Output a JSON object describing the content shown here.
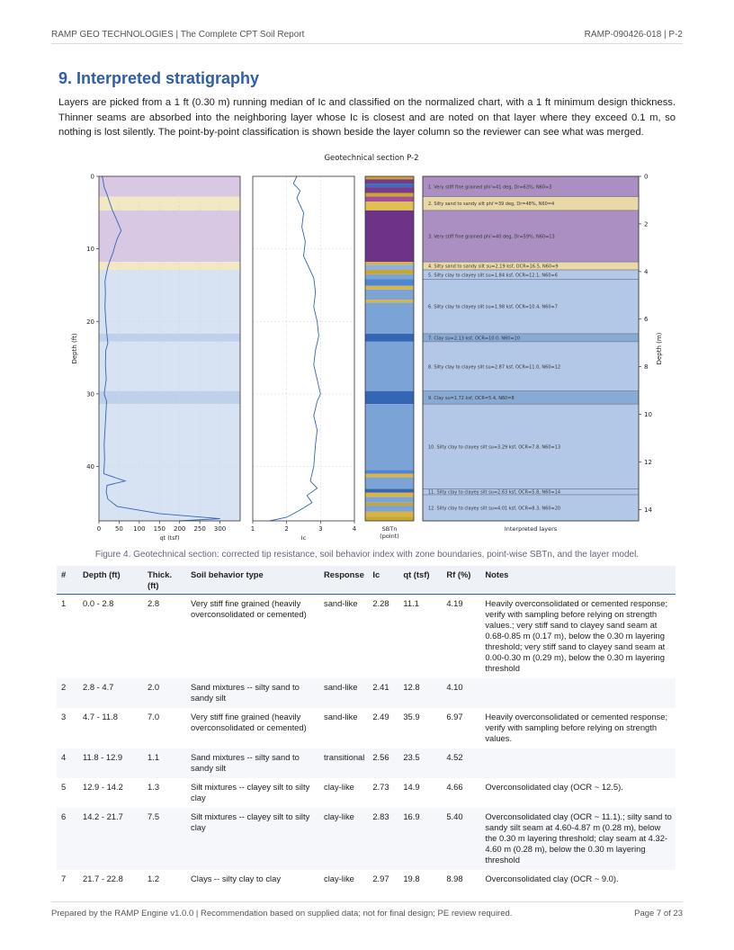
{
  "header": {
    "left": "RAMP GEO TECHNOLOGIES  |  The Complete CPT Soil Report",
    "right": "RAMP-090426-018  |  P-2"
  },
  "section": {
    "title": "9. Interpreted stratigraphy",
    "intro": "Layers are picked from a 1 ft (0.30 m) running median of Ic and classified on the normalized chart, with a 1 ft minimum design thickness. Thinner seams are absorbed into the neighboring layer whose Ic is closest and are noted on that layer where they exceed 0.1 m, so nothing is lost silently. The point-by-point classification is shown beside the layer column so the reviewer can see what was merged."
  },
  "figure": {
    "caption": "Figure 4. Geotechnical section: corrected tip resistance, soil behavior index with zone boundaries, point-wise SBTn, and the layer model."
  },
  "chart_data": {
    "type": "line",
    "title": "Geotechnical section P-2",
    "ylabel": "Depth (ft)",
    "ylim": [
      0,
      47.5
    ],
    "yticks": [
      "0",
      "10",
      "20",
      "30",
      "40"
    ],
    "right_axis": {
      "label": "Depth (m)",
      "ticks": [
        "0",
        "2",
        "4",
        "6",
        "8",
        "10",
        "12",
        "14"
      ]
    },
    "panels": {
      "qt": {
        "xlabel": "qt (tsf)",
        "xlim": [
          0,
          350
        ],
        "xticks": [
          "0",
          "50",
          "100",
          "150",
          "200",
          "250",
          "300"
        ]
      },
      "ic": {
        "xlabel": "Ic",
        "xlim": [
          1,
          4
        ],
        "xticks": [
          "1",
          "2",
          "3",
          "4"
        ]
      },
      "sbtn": {
        "xlabel1": "SBTn",
        "xlabel2": "(point)"
      },
      "layers": {
        "xlabel": "Interpreted layers"
      }
    },
    "qt_profile": [
      [
        0.0,
        8
      ],
      [
        0.5,
        10
      ],
      [
        1.5,
        13
      ],
      [
        2.5,
        20
      ],
      [
        3.5,
        26
      ],
      [
        4.5,
        32
      ],
      [
        5.5,
        40
      ],
      [
        6.5,
        48
      ],
      [
        7.5,
        55
      ],
      [
        8.5,
        46
      ],
      [
        9.5,
        40
      ],
      [
        10.5,
        35
      ],
      [
        11.5,
        28
      ],
      [
        12.5,
        22
      ],
      [
        13.5,
        18
      ],
      [
        14.5,
        15
      ],
      [
        16,
        16
      ],
      [
        18,
        15
      ],
      [
        20,
        17
      ],
      [
        22,
        20
      ],
      [
        23,
        22
      ],
      [
        24,
        17
      ],
      [
        26,
        16
      ],
      [
        28,
        18
      ],
      [
        30,
        13
      ],
      [
        31,
        19
      ],
      [
        33,
        17
      ],
      [
        35,
        15
      ],
      [
        37,
        13
      ],
      [
        39,
        14
      ],
      [
        41,
        12
      ],
      [
        42,
        65
      ],
      [
        42.6,
        20
      ],
      [
        43.5,
        18
      ],
      [
        44.5,
        22
      ],
      [
        45.5,
        45
      ],
      [
        46.5,
        150
      ],
      [
        47.2,
        300
      ],
      [
        47.5,
        200
      ]
    ],
    "ic_profile": [
      [
        0.0,
        2.3
      ],
      [
        1,
        2.2
      ],
      [
        2,
        2.4
      ],
      [
        3,
        2.3
      ],
      [
        4,
        2.4
      ],
      [
        5,
        2.5
      ],
      [
        7,
        2.45
      ],
      [
        9,
        2.55
      ],
      [
        11,
        2.5
      ],
      [
        12,
        2.6
      ],
      [
        13,
        2.7
      ],
      [
        14,
        2.8
      ],
      [
        16,
        2.85
      ],
      [
        18,
        2.8
      ],
      [
        20,
        2.9
      ],
      [
        22,
        2.95
      ],
      [
        24,
        2.85
      ],
      [
        26,
        2.8
      ],
      [
        28,
        2.9
      ],
      [
        30,
        3.0
      ],
      [
        31,
        2.9
      ],
      [
        33,
        2.8
      ],
      [
        35,
        2.9
      ],
      [
        37,
        2.85
      ],
      [
        40,
        2.8
      ],
      [
        42,
        2.7
      ],
      [
        43,
        2.9
      ],
      [
        44,
        2.6
      ],
      [
        45,
        2.75
      ],
      [
        46,
        2.4
      ],
      [
        47,
        2.0
      ],
      [
        47.5,
        1.5
      ]
    ],
    "shading_layers": [
      {
        "top": 0,
        "bottom": 2.8,
        "color": "#d9c8e3"
      },
      {
        "top": 2.8,
        "bottom": 4.7,
        "color": "#f3e8c4"
      },
      {
        "top": 4.7,
        "bottom": 11.8,
        "color": "#d9c8e3"
      },
      {
        "top": 11.8,
        "bottom": 12.9,
        "color": "#f3e8c4"
      },
      {
        "top": 12.9,
        "bottom": 21.7,
        "color": "#d7e3f2"
      },
      {
        "top": 21.7,
        "bottom": 22.8,
        "color": "#bfd1ea"
      },
      {
        "top": 22.8,
        "bottom": 29.6,
        "color": "#d7e3f2"
      },
      {
        "top": 29.6,
        "bottom": 31.4,
        "color": "#bfd1ea"
      },
      {
        "top": 31.4,
        "bottom": 47.5,
        "color": "#d7e3f2"
      }
    ],
    "model_layers": [
      {
        "top": 0,
        "bottom": 2.8,
        "color": "#ab8fc2",
        "label": "1. Very stiff fine grained  phi'=41 deg, Dr=63%, N60=3"
      },
      {
        "top": 2.8,
        "bottom": 4.7,
        "color": "#ead9a6",
        "label": "2. Silty sand to sandy silt  phi'=39 deg, Dr=48%, N60=4"
      },
      {
        "top": 4.7,
        "bottom": 11.8,
        "color": "#ab8fc2",
        "label": "3. Very stiff fine grained  phi'=40 deg, Dr=59%, N60=13"
      },
      {
        "top": 11.8,
        "bottom": 12.9,
        "color": "#ead9a6",
        "label": "4. Silty sand to sandy silt  su=2.19 ksf, OCR=16.5, N60=9"
      },
      {
        "top": 12.9,
        "bottom": 14.2,
        "color": "#b3c8e6",
        "label": "5. Silty clay to clayey silt  su=1.84 ksf, OCR=12.1, N60=6"
      },
      {
        "top": 14.2,
        "bottom": 21.7,
        "color": "#b3c8e6",
        "label": "6. Silty clay to clayey silt  su=1.98 ksf, OCR=10.4, N60=7"
      },
      {
        "top": 21.7,
        "bottom": 22.8,
        "color": "#8aaad6",
        "label": "7. Clay  su=2.13 ksf, OCR=10.0, N60=10"
      },
      {
        "top": 22.8,
        "bottom": 29.6,
        "color": "#b3c8e6",
        "label": "8. Silty clay to clayey silt  su=2.87 ksf, OCR=11.0, N60=12"
      },
      {
        "top": 29.6,
        "bottom": 31.4,
        "color": "#8aaad6",
        "label": "9. Clay  su=1.72 ksf, OCR=5.4, N60=8"
      },
      {
        "top": 31.4,
        "bottom": 43.1,
        "color": "#b3c8e6",
        "label": "10. Silty clay to clayey silt  su=3.29 ksf, OCR=7.8, N60=13"
      },
      {
        "top": 43.1,
        "bottom": 43.9,
        "color": "#b3c8e6",
        "label": "11. Silty clay to clayey silt  su=2.63 ksf, OCR=5.8, N60=14"
      },
      {
        "top": 43.9,
        "bottom": 47.5,
        "color": "#b3c8e6",
        "label": "12. Silty clay to clayey silt  su=4.01 ksf, OCR=8.3, N60=20"
      }
    ],
    "sbtn_bands": [
      {
        "top": 0,
        "bottom": 0.4,
        "color": "#c8a630"
      },
      {
        "top": 0.4,
        "bottom": 1.0,
        "color": "#7a3a8c"
      },
      {
        "top": 1.0,
        "bottom": 1.5,
        "color": "#3d6fbf"
      },
      {
        "top": 1.5,
        "bottom": 2.3,
        "color": "#7a3a8c"
      },
      {
        "top": 2.3,
        "bottom": 2.8,
        "color": "#c8a630"
      },
      {
        "top": 2.8,
        "bottom": 3.5,
        "color": "#a64d99"
      },
      {
        "top": 3.5,
        "bottom": 4.7,
        "color": "#e0c050"
      },
      {
        "top": 4.7,
        "bottom": 11.8,
        "color": "#6c3388"
      },
      {
        "top": 11.8,
        "bottom": 12.2,
        "color": "#d8b348"
      },
      {
        "top": 12.2,
        "bottom": 12.9,
        "color": "#8fb0d8"
      },
      {
        "top": 12.9,
        "bottom": 13.5,
        "color": "#c8a630"
      },
      {
        "top": 13.5,
        "bottom": 14.2,
        "color": "#7ba3d6"
      },
      {
        "top": 14.2,
        "bottom": 15.1,
        "color": "#4f86cf"
      },
      {
        "top": 15.1,
        "bottom": 15.6,
        "color": "#d8b348"
      },
      {
        "top": 15.6,
        "bottom": 17.0,
        "color": "#7ba3d6"
      },
      {
        "top": 17.0,
        "bottom": 17.4,
        "color": "#d8b348"
      },
      {
        "top": 17.4,
        "bottom": 21.7,
        "color": "#7ba3d6"
      },
      {
        "top": 21.7,
        "bottom": 22.8,
        "color": "#3565b5"
      },
      {
        "top": 22.8,
        "bottom": 29.6,
        "color": "#7ba3d6"
      },
      {
        "top": 29.6,
        "bottom": 31.4,
        "color": "#3565b5"
      },
      {
        "top": 31.4,
        "bottom": 40.5,
        "color": "#7ba3d6"
      },
      {
        "top": 40.5,
        "bottom": 41.0,
        "color": "#4f86cf"
      },
      {
        "top": 41.0,
        "bottom": 41.5,
        "color": "#d8b348"
      },
      {
        "top": 41.5,
        "bottom": 43.1,
        "color": "#7ba3d6"
      },
      {
        "top": 43.1,
        "bottom": 43.6,
        "color": "#3565b5"
      },
      {
        "top": 43.6,
        "bottom": 44.2,
        "color": "#d8b348"
      },
      {
        "top": 44.2,
        "bottom": 45.0,
        "color": "#7ba3d6"
      },
      {
        "top": 45.0,
        "bottom": 45.4,
        "color": "#c8a630"
      },
      {
        "top": 45.4,
        "bottom": 46.2,
        "color": "#7ba3d6"
      },
      {
        "top": 46.2,
        "bottom": 46.9,
        "color": "#d8b348"
      },
      {
        "top": 46.9,
        "bottom": 47.5,
        "color": "#c8a630"
      }
    ]
  },
  "table": {
    "headers": [
      "#",
      "Depth (ft)",
      "Thick. (ft)",
      "Soil behavior type",
      "Response",
      "Ic",
      "qt (tsf)",
      "Rf (%)",
      "Notes"
    ],
    "rows": [
      [
        "1",
        "0.0 - 2.8",
        "2.8",
        "Very stiff fine grained (heavily overconsolidated or cemented)",
        "sand-like",
        "2.28",
        "11.1",
        "4.19",
        "Heavily overconsolidated or cemented response; verify with sampling before relying on strength values.; very stiff sand to clayey sand seam at 0.68-0.85 m (0.17 m), below the 0.30 m layering threshold; very stiff sand to clayey sand seam at 0.00-0.30 m (0.29 m), below the 0.30 m layering threshold"
      ],
      [
        "2",
        "2.8 - 4.7",
        "2.0",
        "Sand mixtures -- silty sand to sandy silt",
        "sand-like",
        "2.41",
        "12.8",
        "4.10",
        ""
      ],
      [
        "3",
        "4.7 - 11.8",
        "7.0",
        "Very stiff fine grained (heavily overconsolidated or cemented)",
        "sand-like",
        "2.49",
        "35.9",
        "6.97",
        "Heavily overconsolidated or cemented response; verify with sampling before relying on strength values."
      ],
      [
        "4",
        "11.8 - 12.9",
        "1.1",
        "Sand mixtures -- silty sand to sandy silt",
        "transitional",
        "2.56",
        "23.5",
        "4.52",
        ""
      ],
      [
        "5",
        "12.9 - 14.2",
        "1.3",
        "Silt mixtures -- clayey silt to silty clay",
        "clay-like",
        "2.73",
        "14.9",
        "4.66",
        "Overconsolidated clay (OCR ~ 12.5)."
      ],
      [
        "6",
        "14.2 - 21.7",
        "7.5",
        "Silt mixtures -- clayey silt to silty clay",
        "clay-like",
        "2.83",
        "16.9",
        "5.40",
        "Overconsolidated clay (OCR ~ 11.1).; silty sand to sandy silt seam at 4.60-4.87 m (0.28 m), below the 0.30 m layering threshold; clay seam at 4.32-4.60 m (0.28 m), below the 0.30 m layering threshold"
      ],
      [
        "7",
        "21.7 - 22.8",
        "1.2",
        "Clays -- silty clay to clay",
        "clay-like",
        "2.97",
        "19.8",
        "8.98",
        "Overconsolidated clay (OCR ~ 9.0)."
      ]
    ]
  },
  "footer": {
    "left": "Prepared by the RAMP Engine v1.0.0  |  Recommendation based on supplied data; not for final design; PE review required.",
    "right": "Page 7 of 23"
  }
}
